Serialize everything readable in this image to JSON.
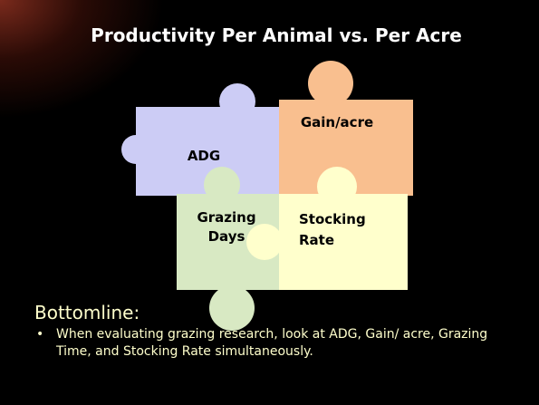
{
  "slide": {
    "title": "Productivity Per Animal vs. Per Acre",
    "puzzle": {
      "pieces": [
        {
          "lines": [
            "ADG"
          ]
        },
        {
          "lines": [
            "Gain/acre"
          ]
        },
        {
          "lines": [
            "Grazing",
            "Days"
          ]
        },
        {
          "lines": [
            "Stocking",
            "Rate"
          ]
        }
      ]
    },
    "heading": "Bottomline:",
    "bullets": [
      "When evaluating grazing research, look at ADG, Gain/ acre, Grazing Time, and Stocking Rate simultaneously."
    ]
  }
}
